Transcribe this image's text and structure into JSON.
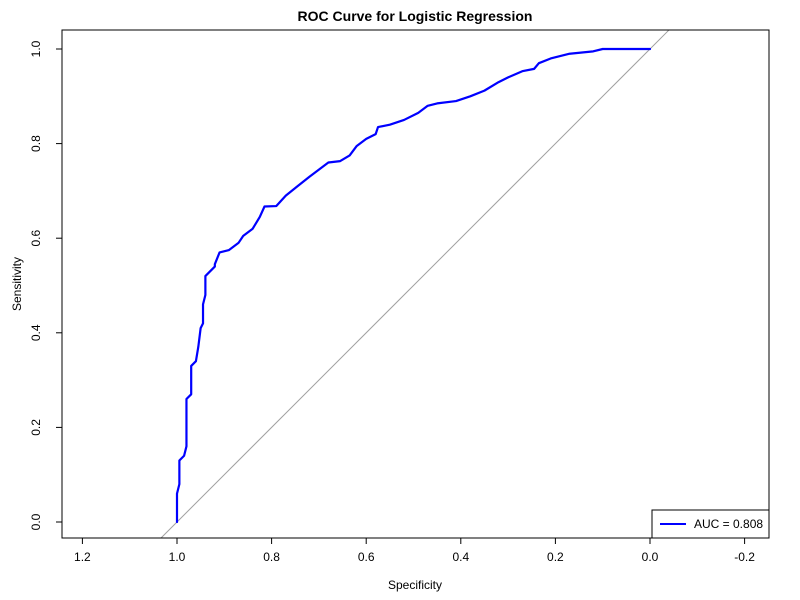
{
  "chart_data": {
    "type": "line",
    "title": "ROC Curve for Logistic Regression",
    "xlabel": "Specificity",
    "ylabel": "Sensitivity",
    "x_reversed": true,
    "xlim": [
      1.24,
      -0.25
    ],
    "ylim": [
      -0.03,
      1.03
    ],
    "x_ticks": [
      1.2,
      1.0,
      0.8,
      0.6,
      0.4,
      0.2,
      0.0,
      -0.2
    ],
    "x_tick_labels": [
      "1.2",
      "1.0",
      "0.8",
      "0.6",
      "0.4",
      "0.2",
      "0.0",
      "-0.2"
    ],
    "y_ticks": [
      0.0,
      0.2,
      0.4,
      0.6,
      0.8,
      1.0
    ],
    "y_tick_labels": [
      "0.0",
      "0.2",
      "0.4",
      "0.6",
      "0.8",
      "1.0"
    ],
    "grid": false,
    "legend_position": "bottom-right",
    "reference_line": {
      "description": "diagonal chance line",
      "points": [
        [
          1.04,
          -0.04
        ],
        [
          -0.04,
          1.04
        ]
      ],
      "color": "#a0a0a0"
    },
    "series": [
      {
        "name": "AUC = 0.808",
        "color": "#0000ff",
        "points": [
          [
            1.0,
            0.0
          ],
          [
            1.0,
            0.06
          ],
          [
            0.995,
            0.08
          ],
          [
            0.995,
            0.13
          ],
          [
            0.985,
            0.14
          ],
          [
            0.98,
            0.16
          ],
          [
            0.98,
            0.26
          ],
          [
            0.97,
            0.27
          ],
          [
            0.97,
            0.33
          ],
          [
            0.96,
            0.34
          ],
          [
            0.955,
            0.37
          ],
          [
            0.95,
            0.41
          ],
          [
            0.945,
            0.42
          ],
          [
            0.945,
            0.46
          ],
          [
            0.94,
            0.48
          ],
          [
            0.94,
            0.52
          ],
          [
            0.93,
            0.53
          ],
          [
            0.92,
            0.54
          ],
          [
            0.92,
            0.545
          ],
          [
            0.91,
            0.57
          ],
          [
            0.89,
            0.575
          ],
          [
            0.87,
            0.59
          ],
          [
            0.86,
            0.605
          ],
          [
            0.84,
            0.62
          ],
          [
            0.825,
            0.645
          ],
          [
            0.815,
            0.667
          ],
          [
            0.79,
            0.668
          ],
          [
            0.77,
            0.69
          ],
          [
            0.745,
            0.71
          ],
          [
            0.72,
            0.73
          ],
          [
            0.7,
            0.745
          ],
          [
            0.68,
            0.76
          ],
          [
            0.655,
            0.763
          ],
          [
            0.635,
            0.775
          ],
          [
            0.62,
            0.795
          ],
          [
            0.6,
            0.81
          ],
          [
            0.58,
            0.82
          ],
          [
            0.575,
            0.835
          ],
          [
            0.55,
            0.84
          ],
          [
            0.52,
            0.85
          ],
          [
            0.49,
            0.865
          ],
          [
            0.47,
            0.88
          ],
          [
            0.45,
            0.885
          ],
          [
            0.41,
            0.89
          ],
          [
            0.38,
            0.9
          ],
          [
            0.35,
            0.912
          ],
          [
            0.32,
            0.93
          ],
          [
            0.3,
            0.94
          ],
          [
            0.27,
            0.953
          ],
          [
            0.245,
            0.958
          ],
          [
            0.235,
            0.97
          ],
          [
            0.21,
            0.98
          ],
          [
            0.17,
            0.99
          ],
          [
            0.12,
            0.995
          ],
          [
            0.1,
            1.0
          ],
          [
            0.0,
            1.0
          ]
        ]
      }
    ],
    "legend": {
      "label": "AUC = 0.808",
      "color": "#0000ff"
    }
  }
}
